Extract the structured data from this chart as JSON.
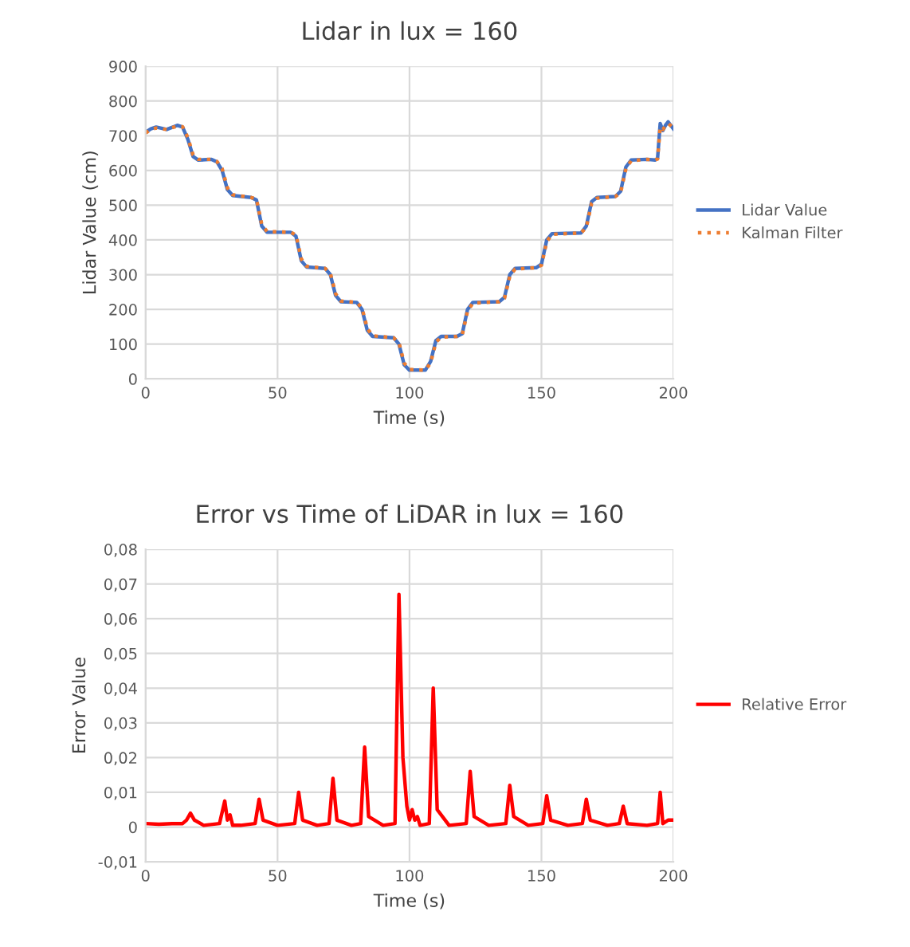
{
  "chart_data": [
    {
      "type": "line",
      "title": "Lidar in lux = 160",
      "xlabel": "Time (s)",
      "ylabel": "Lidar Value (cm)",
      "x": [
        0,
        2,
        4,
        8,
        12,
        14,
        16,
        18,
        20,
        25,
        27,
        29,
        31,
        33,
        40,
        42,
        44,
        46,
        55,
        57,
        59,
        61,
        68,
        70,
        72,
        74,
        80,
        82,
        84,
        86,
        94,
        96,
        98,
        100,
        106,
        108,
        110,
        112,
        118,
        120,
        122,
        124,
        134,
        136,
        138,
        140,
        148,
        150,
        152,
        154,
        165,
        167,
        169,
        171,
        178,
        180,
        182,
        184,
        190,
        193,
        194,
        195,
        196,
        197,
        198,
        200
      ],
      "series": [
        {
          "name": "Lidar Value",
          "color": "#4472c4",
          "line_style": "solid",
          "values": [
            710,
            720,
            725,
            718,
            730,
            725,
            690,
            640,
            630,
            632,
            625,
            600,
            545,
            528,
            522,
            515,
            440,
            422,
            422,
            410,
            340,
            322,
            318,
            300,
            240,
            222,
            220,
            200,
            140,
            122,
            118,
            100,
            40,
            25,
            25,
            50,
            110,
            122,
            122,
            130,
            200,
            220,
            222,
            235,
            300,
            318,
            320,
            330,
            400,
            418,
            420,
            440,
            510,
            522,
            525,
            540,
            610,
            630,
            632,
            630,
            635,
            735,
            715,
            730,
            740,
            720
          ]
        },
        {
          "name": "Kalman Filter",
          "color": "#ed7d31",
          "line_style": "dotted",
          "values": [
            708,
            718,
            722,
            718,
            728,
            726,
            695,
            645,
            632,
            632,
            626,
            605,
            550,
            530,
            522,
            518,
            445,
            424,
            422,
            414,
            345,
            324,
            318,
            304,
            245,
            224,
            220,
            204,
            145,
            124,
            118,
            104,
            45,
            27,
            25,
            46,
            105,
            120,
            122,
            127,
            195,
            218,
            222,
            232,
            295,
            316,
            320,
            327,
            395,
            416,
            420,
            436,
            505,
            520,
            525,
            536,
            605,
            628,
            632,
            630,
            633,
            725,
            718,
            728,
            736,
            722
          ]
        }
      ],
      "xlim": [
        0,
        200
      ],
      "xticks": [
        0,
        50,
        100,
        150,
        200
      ],
      "ylim": [
        0,
        900
      ],
      "yticks": [
        0,
        100,
        200,
        300,
        400,
        500,
        600,
        700,
        800,
        900
      ],
      "grid": true,
      "legend": "right",
      "marker": "none"
    },
    {
      "type": "line",
      "title": "Error vs Time of LiDAR in lux = 160",
      "xlabel": "Time (s)",
      "ylabel": "Error Value",
      "x": [
        0,
        5,
        10,
        14,
        15.5,
        17,
        18.5,
        22,
        28,
        30,
        31,
        32,
        33,
        36,
        41.5,
        43,
        44.5,
        50,
        56.5,
        58,
        59.5,
        65,
        69.5,
        71,
        72.5,
        78,
        81.5,
        83,
        84.5,
        90,
        94.5,
        96,
        97.5,
        99,
        100,
        101,
        102,
        103,
        104,
        107.5,
        109,
        110.5,
        115,
        121.5,
        123,
        124.5,
        130,
        136.5,
        138,
        139.5,
        145,
        150.5,
        152,
        153.5,
        160,
        165.5,
        167,
        168.5,
        175,
        179.5,
        181,
        182.5,
        190,
        194,
        195,
        196,
        198,
        200
      ],
      "series": [
        {
          "name": "Relative Error",
          "color": "#ff0000",
          "line_style": "solid",
          "values": [
            0.001,
            0.0008,
            0.001,
            0.001,
            0.002,
            0.004,
            0.002,
            0.0005,
            0.001,
            0.0075,
            0.002,
            0.0035,
            0.0005,
            0.0005,
            0.001,
            0.008,
            0.002,
            0.0005,
            0.001,
            0.01,
            0.002,
            0.0005,
            0.001,
            0.014,
            0.002,
            0.0005,
            0.001,
            0.023,
            0.003,
            0.0005,
            0.001,
            0.067,
            0.02,
            0.006,
            0.002,
            0.005,
            0.002,
            0.003,
            0.0005,
            0.001,
            0.04,
            0.005,
            0.0005,
            0.001,
            0.016,
            0.003,
            0.0005,
            0.001,
            0.012,
            0.003,
            0.0005,
            0.001,
            0.009,
            0.002,
            0.0005,
            0.001,
            0.008,
            0.002,
            0.0005,
            0.001,
            0.006,
            0.001,
            0.0005,
            0.001,
            0.01,
            0.001,
            0.002,
            0.002
          ]
        }
      ],
      "xlim": [
        0,
        200
      ],
      "xticks": [
        0,
        50,
        100,
        150,
        200
      ],
      "ylim": [
        -0.01,
        0.08
      ],
      "yticks": [
        {
          "value": -0.01,
          "label": "-0,01"
        },
        {
          "value": 0,
          "label": "0"
        },
        {
          "value": 0.01,
          "label": "0,01"
        },
        {
          "value": 0.02,
          "label": "0,02"
        },
        {
          "value": 0.03,
          "label": "0,03"
        },
        {
          "value": 0.04,
          "label": "0,04"
        },
        {
          "value": 0.05,
          "label": "0,05"
        },
        {
          "value": 0.06,
          "label": "0,06"
        },
        {
          "value": 0.07,
          "label": "0,07"
        },
        {
          "value": 0.08,
          "label": "0,08"
        }
      ],
      "grid": true,
      "legend": "right",
      "marker": "none"
    }
  ]
}
